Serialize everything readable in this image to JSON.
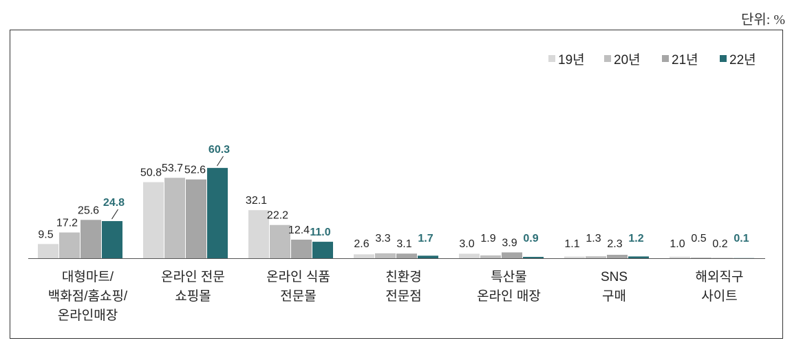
{
  "unit_label": "단위: %",
  "chart_data": {
    "type": "bar",
    "title": "",
    "xlabel": "",
    "ylabel": "",
    "ylim": [
      0,
      70
    ],
    "legend_position": "top-right",
    "categories": [
      [
        "대형마트/",
        "백화점/홈쇼핑/",
        "온라인매장"
      ],
      [
        "온라인 전문",
        "쇼핑몰"
      ],
      [
        "온라인 식품",
        "전문몰"
      ],
      [
        "친환경",
        "전문점"
      ],
      [
        "특산물",
        "온라인 매장"
      ],
      [
        "SNS",
        "구매"
      ],
      [
        "해외직구",
        "사이트"
      ]
    ],
    "series": [
      {
        "name": "19년",
        "color": "#d9d9d9",
        "values": [
          9.5,
          50.8,
          32.1,
          2.6,
          3.0,
          1.1,
          1.0
        ],
        "labels": [
          "9.5",
          "50.8",
          "32.1",
          "2.6",
          "3.0",
          "1.1",
          "1.0"
        ]
      },
      {
        "name": "20년",
        "color": "#bfbfbf",
        "values": [
          17.2,
          53.7,
          22.2,
          3.3,
          1.9,
          1.3,
          0.5
        ],
        "labels": [
          "17.2",
          "53.7",
          "22.2",
          "3.3",
          "1.9",
          "1.3",
          "0.5"
        ]
      },
      {
        "name": "21년",
        "color": "#a6a6a6",
        "values": [
          25.6,
          52.6,
          12.4,
          3.1,
          3.9,
          2.3,
          0.2
        ],
        "labels": [
          "25.6",
          "52.6",
          "12.4",
          "3.1",
          "3.9",
          "2.3",
          "0.2"
        ]
      },
      {
        "name": "22년",
        "color": "#256b72",
        "values": [
          24.8,
          60.3,
          11.0,
          1.7,
          0.9,
          1.2,
          0.1
        ],
        "labels": [
          "24.8",
          "60.3",
          "11.0",
          "1.7",
          "0.9",
          "1.2",
          "0.1"
        ]
      }
    ]
  }
}
